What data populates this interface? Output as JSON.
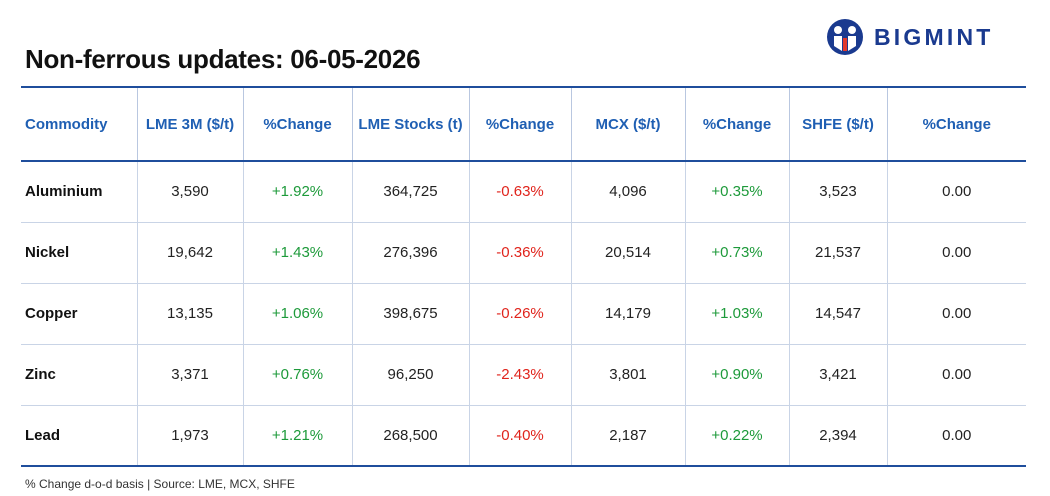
{
  "title": "Non-ferrous updates: 06-05-2026",
  "logo": {
    "text": "BIGMINT",
    "color": "#1a3a8f"
  },
  "colors": {
    "header_text": "#1f5fb3",
    "positive": "#1d9a3a",
    "negative": "#e0241c",
    "rule": "#1f4e9c"
  },
  "table": {
    "headers": [
      "Commodity",
      "LME 3M ($/t)",
      "%Change",
      "LME Stocks (t)",
      "%Change",
      "MCX ($/t)",
      "%Change",
      "SHFE ($/t)",
      "%Change"
    ],
    "rows": [
      [
        "Aluminium",
        "3,590",
        "+1.92%",
        "364,725",
        "-0.63%",
        "4,096",
        "+0.35%",
        "3,523",
        "0.00"
      ],
      [
        "Nickel",
        "19,642",
        "+1.43%",
        "276,396",
        "-0.36%",
        "20,514",
        "+0.73%",
        "21,537",
        "0.00"
      ],
      [
        "Copper",
        "13,135",
        "+1.06%",
        "398,675",
        "-0.26%",
        "14,179",
        "+1.03%",
        "14,547",
        "0.00"
      ],
      [
        "Zinc",
        "3,371",
        "+0.76%",
        "96,250",
        "-2.43%",
        "3,801",
        "+0.90%",
        "3,421",
        "0.00"
      ],
      [
        "Lead",
        "1,973",
        "+1.21%",
        "268,500",
        "-0.40%",
        "2,187",
        "+0.22%",
        "2,394",
        "0.00"
      ]
    ]
  },
  "footnote": "% Change d-o-d basis | Source: LME, MCX, SHFE"
}
